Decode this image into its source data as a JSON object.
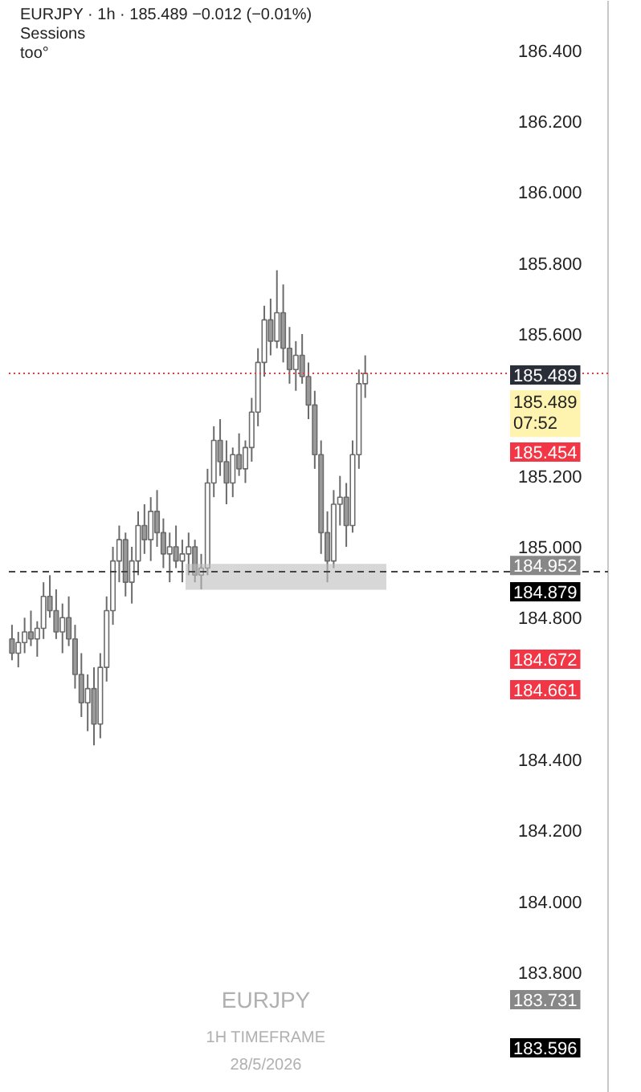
{
  "chart_data": {
    "type": "candlestick",
    "title": "EURJPY · 1h · 185.489 −0.012 (−0.01%)",
    "annotations": [
      "Sessions",
      "too°",
      "EURJPY",
      "1H TIMEFRAME",
      "28/5/2026",
      {
        "text": "185.489",
        "y": 185.489
      },
      {
        "text": "185.489 07:52",
        "y": 185.489
      },
      "185.454",
      {
        "text": "184.952",
        "y": 184.952
      },
      "184.879",
      "184.672",
      "184.661",
      "183.731",
      "183.596"
    ],
    "categories": [
      null,
      null,
      null,
      null,
      null,
      null,
      null,
      null,
      null,
      null,
      null,
      null,
      null,
      null,
      null,
      null,
      null,
      null,
      null,
      null,
      null,
      null,
      null,
      null,
      null,
      null,
      null,
      null,
      null,
      null,
      null,
      null,
      null,
      null,
      null,
      null,
      null,
      null,
      null,
      null,
      null,
      null,
      null,
      null,
      null,
      null,
      null,
      null,
      null,
      null,
      null,
      null,
      null,
      null,
      null,
      null,
      null,
      null,
      null,
      null,
      null,
      null,
      null,
      null,
      null,
      null,
      null,
      null,
      null,
      null,
      null,
      null,
      null,
      null,
      null,
      null,
      null,
      null,
      null,
      null,
      null,
      null,
      null,
      null,
      null,
      null,
      null,
      null,
      null,
      null,
      null,
      null,
      null,
      null,
      null
    ],
    "ohlc": [
      [
        184.74,
        184.78,
        184.68,
        184.7
      ],
      [
        184.7,
        184.76,
        184.66,
        184.73
      ],
      [
        184.73,
        184.8,
        184.7,
        184.76
      ],
      [
        184.76,
        184.82,
        184.72,
        184.74
      ],
      [
        184.74,
        184.79,
        184.69,
        184.77
      ],
      [
        184.77,
        184.9,
        184.74,
        184.86
      ],
      [
        184.86,
        184.92,
        184.8,
        184.82
      ],
      [
        184.82,
        184.88,
        184.74,
        184.76
      ],
      [
        184.76,
        184.84,
        184.7,
        184.8
      ],
      [
        184.8,
        184.86,
        184.72,
        184.74
      ],
      [
        184.74,
        184.78,
        184.6,
        184.64
      ],
      [
        184.64,
        184.7,
        184.52,
        184.56
      ],
      [
        184.56,
        184.64,
        184.48,
        184.6
      ],
      [
        184.6,
        184.66,
        184.44,
        184.5
      ],
      [
        184.5,
        184.7,
        184.46,
        184.66
      ],
      [
        184.66,
        184.86,
        184.62,
        184.82
      ],
      [
        184.82,
        185.0,
        184.78,
        184.96
      ],
      [
        184.96,
        185.06,
        184.9,
        185.02
      ],
      [
        185.02,
        185.04,
        184.86,
        184.9
      ],
      [
        184.9,
        185.0,
        184.84,
        184.96
      ],
      [
        184.96,
        185.1,
        184.92,
        185.06
      ],
      [
        185.06,
        185.12,
        184.98,
        185.02
      ],
      [
        185.02,
        185.14,
        184.96,
        185.1
      ],
      [
        185.1,
        185.16,
        185.0,
        185.04
      ],
      [
        185.04,
        185.08,
        184.94,
        184.98
      ],
      [
        184.98,
        185.04,
        184.9,
        185.0
      ],
      [
        185.0,
        185.06,
        184.94,
        184.96
      ],
      [
        184.96,
        185.02,
        184.9,
        184.98
      ],
      [
        184.98,
        185.04,
        184.92,
        185.0
      ],
      [
        185.0,
        185.02,
        184.9,
        184.92
      ],
      [
        184.92,
        184.98,
        184.88,
        184.94
      ],
      [
        184.94,
        185.22,
        184.92,
        185.18
      ],
      [
        185.18,
        185.34,
        185.14,
        185.3
      ],
      [
        185.3,
        185.36,
        185.2,
        185.24
      ],
      [
        185.24,
        185.3,
        185.12,
        185.18
      ],
      [
        185.18,
        185.28,
        185.14,
        185.26
      ],
      [
        185.26,
        185.32,
        185.2,
        185.22
      ],
      [
        185.22,
        185.3,
        185.18,
        185.28
      ],
      [
        185.28,
        185.42,
        185.24,
        185.38
      ],
      [
        185.38,
        185.56,
        185.34,
        185.52
      ],
      [
        185.52,
        185.68,
        185.48,
        185.64
      ],
      [
        185.64,
        185.7,
        185.54,
        185.58
      ],
      [
        185.58,
        185.78,
        185.56,
        185.66
      ],
      [
        185.66,
        185.74,
        185.52,
        185.56
      ],
      [
        185.56,
        185.62,
        185.46,
        185.5
      ],
      [
        185.5,
        185.58,
        185.44,
        185.54
      ],
      [
        185.54,
        185.6,
        185.46,
        185.48
      ],
      [
        185.48,
        185.52,
        185.36,
        185.4
      ],
      [
        185.4,
        185.44,
        185.22,
        185.26
      ],
      [
        185.26,
        185.3,
        184.98,
        185.04
      ],
      [
        185.04,
        185.1,
        184.9,
        184.96
      ],
      [
        184.96,
        185.16,
        184.94,
        185.12
      ],
      [
        185.12,
        185.2,
        185.06,
        185.14
      ],
      [
        185.14,
        185.18,
        185.0,
        185.06
      ],
      [
        185.06,
        185.3,
        185.04,
        185.26
      ],
      [
        185.26,
        185.5,
        185.22,
        185.46
      ],
      [
        185.46,
        185.54,
        185.42,
        185.489
      ],
      null,
      null,
      null,
      null,
      null,
      null,
      null,
      null,
      null,
      null,
      null,
      null,
      null,
      null,
      null,
      null,
      null,
      null,
      null,
      null,
      null,
      null,
      null,
      null,
      null,
      null,
      null,
      null,
      null,
      null,
      null,
      null,
      null,
      null,
      null,
      null,
      null,
      null
    ],
    "ylim": [
      183.46,
      186.54
    ],
    "yticks": [
      {
        "value": 183.8,
        "label": "183.800"
      },
      {
        "value": 184.0,
        "label": "184.000"
      },
      {
        "value": 184.2,
        "label": "184.200"
      },
      {
        "value": 184.4,
        "label": "184.400"
      },
      {
        "value": 184.8,
        "label": "184.800"
      },
      {
        "value": 185.0,
        "label": "185.000"
      },
      {
        "value": 185.2,
        "label": "185.200"
      },
      {
        "value": 185.6,
        "label": "185.600"
      },
      {
        "value": 185.8,
        "label": "185.800"
      },
      {
        "value": 186.0,
        "label": "186.000"
      },
      {
        "value": 186.2,
        "label": "186.200"
      },
      {
        "value": 186.4,
        "label": "186.400"
      }
    ],
    "ref_lines": [
      {
        "axis": "y",
        "value": 185.489,
        "color": "#f23645",
        "line_style": "dotted"
      },
      {
        "axis": "y",
        "value": 184.93,
        "color": "#444444",
        "line_style": "dashed"
      }
    ],
    "bands": [
      {
        "axis": "y",
        "from": 184.879,
        "to": 184.952,
        "color": "#bdbdbd"
      }
    ],
    "grid": false
  }
}
